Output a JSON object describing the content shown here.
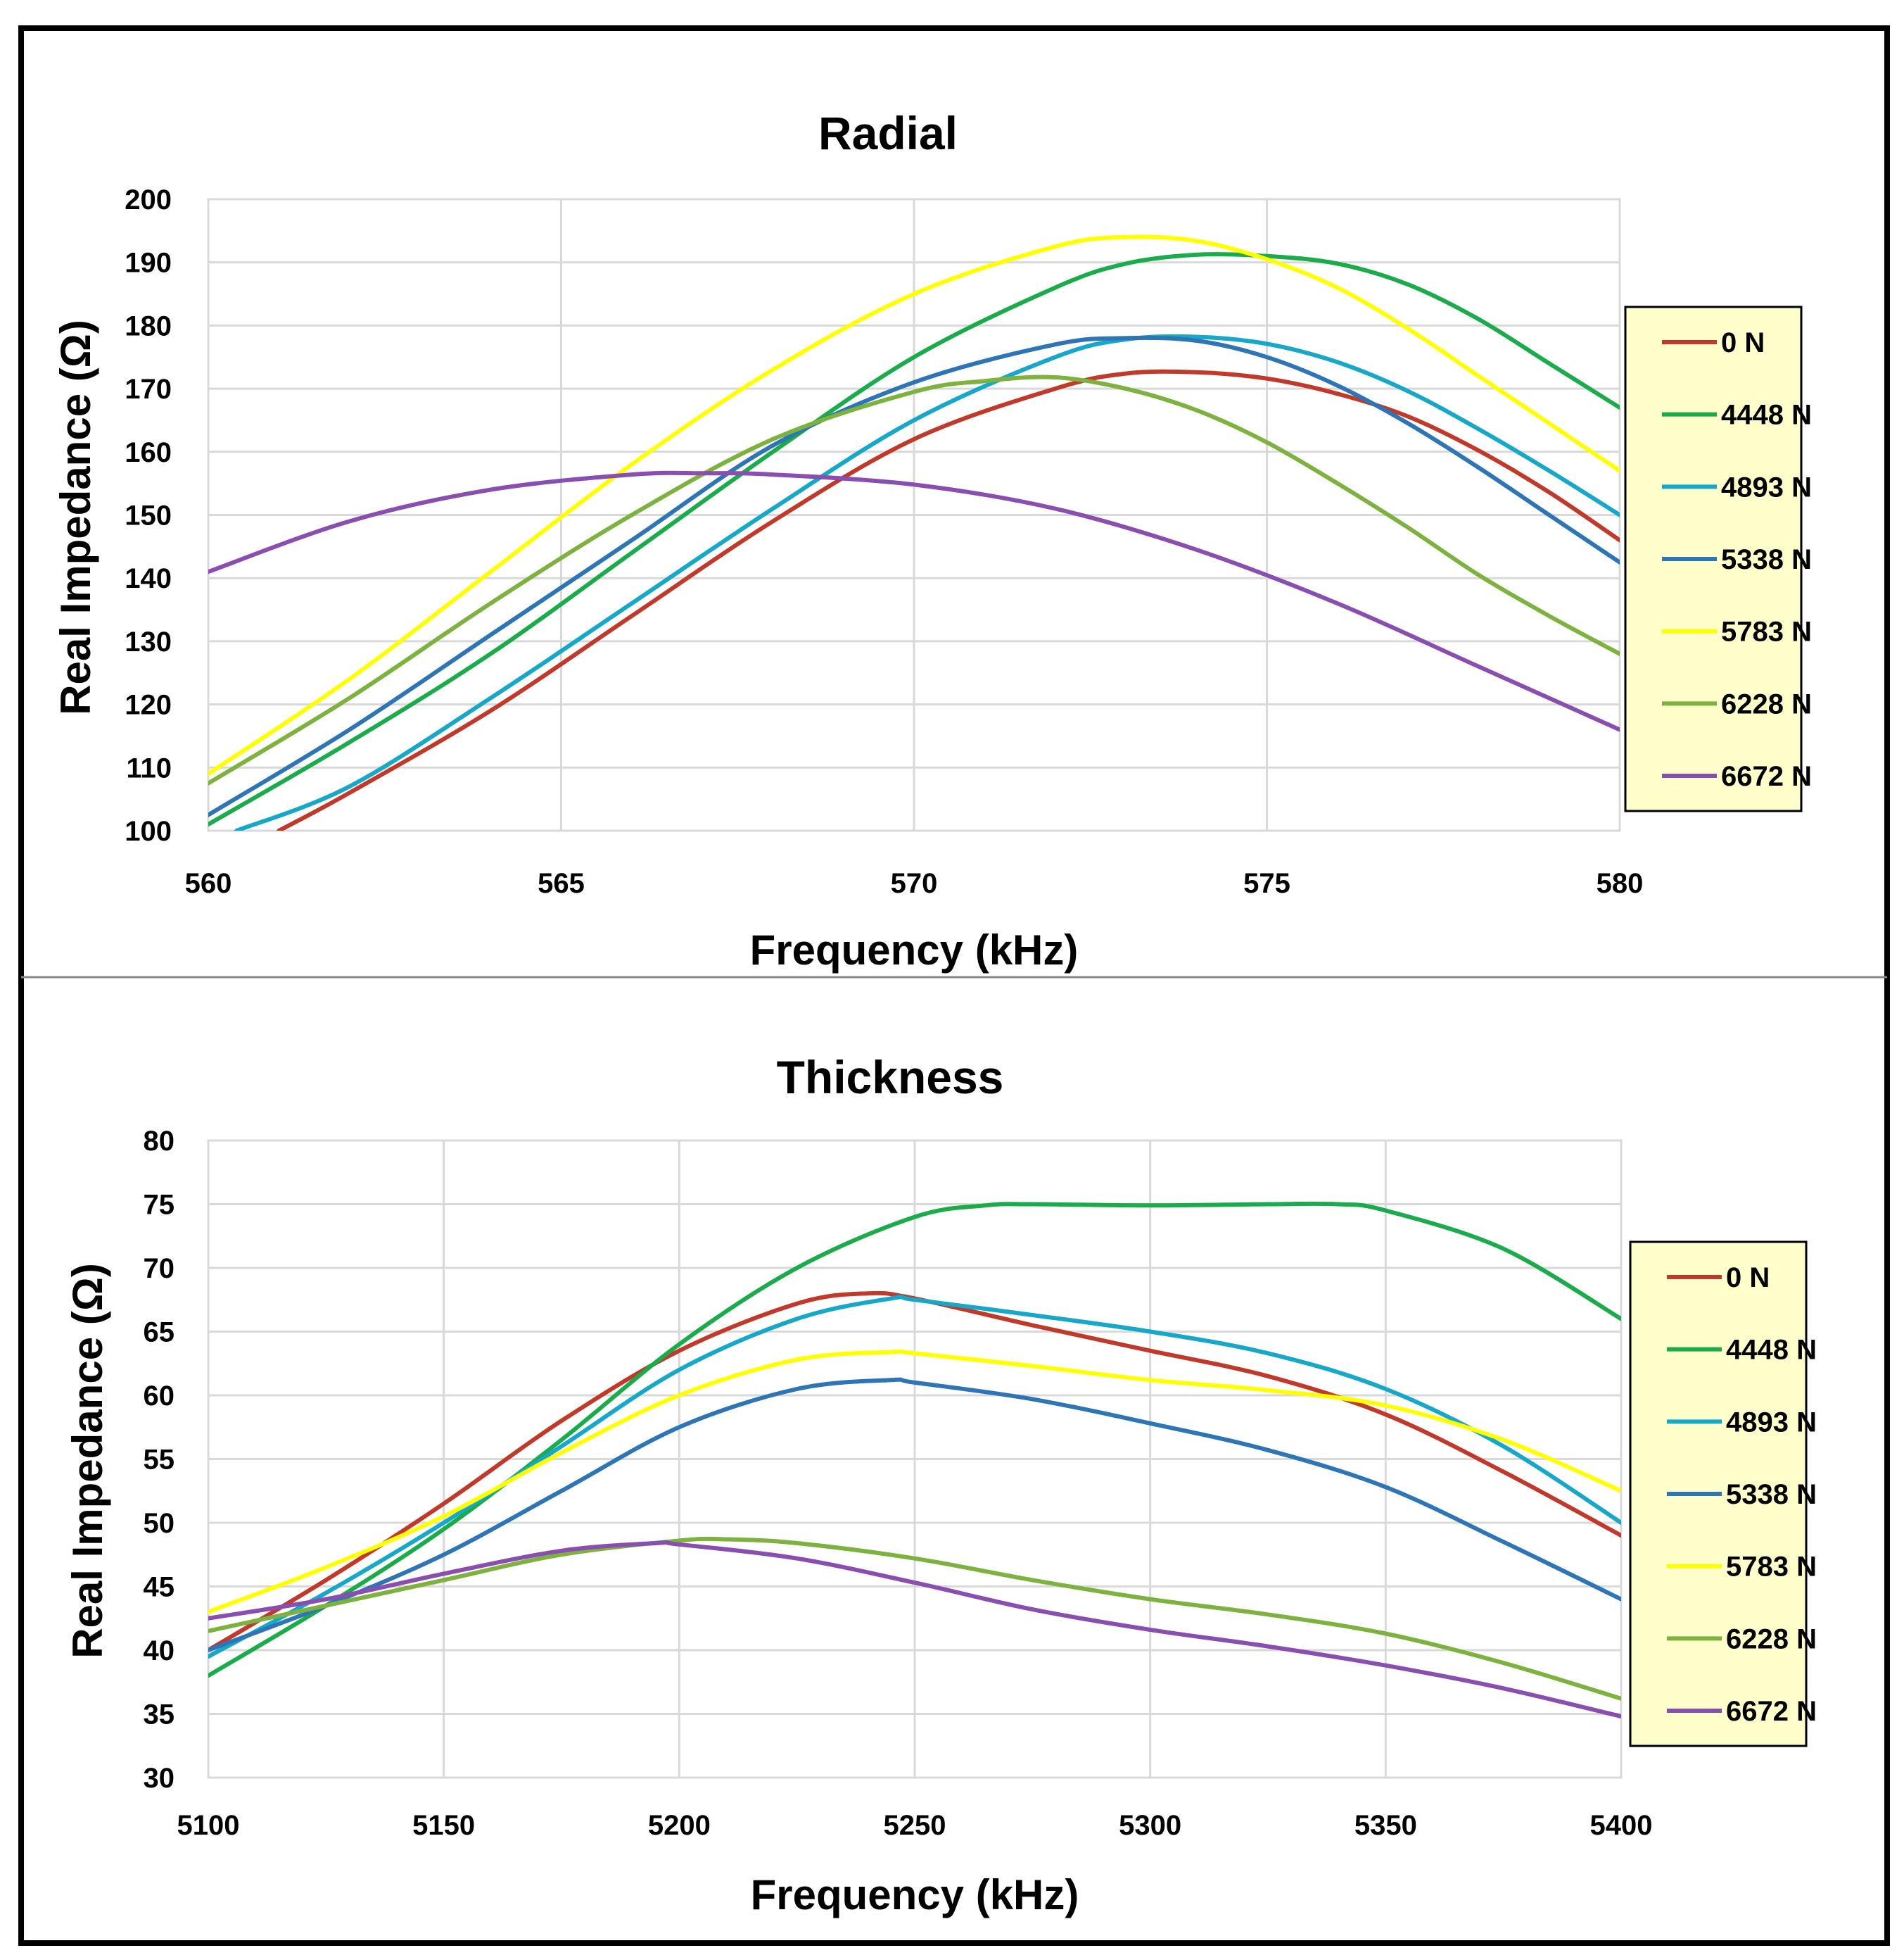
{
  "chart_data": [
    {
      "type": "line",
      "title": "Radial",
      "xlabel": "Frequency (kHz)",
      "ylabel": "Real Impedance (Ω)",
      "xlim": [
        560,
        580
      ],
      "ylim": [
        100,
        200
      ],
      "xticks": [
        560,
        565,
        570,
        575,
        580
      ],
      "yticks": [
        100,
        110,
        120,
        130,
        140,
        150,
        160,
        170,
        180,
        190,
        200
      ],
      "grid": true,
      "legend": "right",
      "series": [
        {
          "name": "0 N",
          "color": "#c0392b",
          "x": [
            561,
            562,
            564,
            566,
            568,
            570,
            572,
            573,
            574,
            575,
            576,
            577,
            578,
            579,
            580
          ],
          "y": [
            100,
            106,
            119,
            134,
            149,
            162,
            170,
            172.4,
            172.6,
            171.6,
            169.2,
            165.6,
            160.2,
            153.6,
            146
          ]
        },
        {
          "name": "4448 N",
          "color": "#1aab4b",
          "x": [
            560,
            562,
            564,
            566,
            568,
            570,
            572,
            573,
            574,
            575,
            576,
            577,
            578,
            579,
            580
          ],
          "y": [
            101,
            114,
            128,
            144,
            160,
            175,
            186,
            189.8,
            191.2,
            191,
            189.8,
            186.5,
            181,
            174,
            167
          ]
        },
        {
          "name": "4893 N",
          "color": "#17a8c9",
          "x": [
            560.4,
            562,
            564,
            566,
            568,
            570,
            572,
            573,
            574,
            575,
            576,
            577,
            578,
            579,
            580
          ],
          "y": [
            100,
            107,
            121,
            136,
            151,
            165,
            175,
            177.8,
            178.2,
            177.1,
            174.2,
            169.6,
            163.6,
            157,
            150
          ]
        },
        {
          "name": "5338 N",
          "color": "#2e75b6",
          "x": [
            560,
            562,
            564,
            566,
            568,
            570,
            572,
            573,
            574,
            575,
            576,
            577,
            578,
            579,
            580
          ],
          "y": [
            102.5,
            116,
            131,
            146,
            161,
            171,
            177,
            178,
            177.6,
            175,
            170.5,
            164.5,
            157.5,
            150,
            142.5
          ]
        },
        {
          "name": "5783 N",
          "color": "#ffff00",
          "x": [
            560,
            562,
            564,
            566,
            568,
            570,
            572,
            573,
            574,
            575,
            576,
            577,
            578,
            579,
            580
          ],
          "y": [
            109,
            124,
            141,
            158,
            173,
            185,
            192.5,
            194,
            193.4,
            190.5,
            186,
            179.5,
            172,
            164.5,
            157
          ]
        },
        {
          "name": "6228 N",
          "color": "#7db23f",
          "x": [
            560,
            562,
            564,
            566,
            568,
            570,
            571,
            572,
            573,
            574,
            575,
            576,
            577,
            578,
            579,
            580
          ],
          "y": [
            107.5,
            121,
            136,
            150,
            162,
            169.5,
            171.2,
            171.8,
            170,
            166.6,
            161.5,
            155,
            148,
            140.5,
            134,
            128
          ]
        },
        {
          "name": "6672 N",
          "color": "#8a4eb0",
          "x": [
            560,
            562,
            564,
            566,
            567,
            568,
            570,
            572,
            574,
            576,
            578,
            580
          ],
          "y": [
            141,
            149,
            154,
            156.4,
            156.6,
            156.4,
            154.8,
            151,
            144.5,
            136,
            126,
            116
          ]
        }
      ]
    },
    {
      "type": "line",
      "title": "Thickness",
      "xlabel": "Frequency (kHz)",
      "ylabel": "Real Impedance (Ω)",
      "xlim": [
        5100,
        5400
      ],
      "ylim": [
        30,
        80
      ],
      "xticks": [
        5100,
        5150,
        5200,
        5250,
        5300,
        5350,
        5400
      ],
      "yticks": [
        30,
        35,
        40,
        45,
        50,
        55,
        60,
        65,
        70,
        75,
        80
      ],
      "grid": true,
      "legend": "right",
      "series": [
        {
          "name": "0 N",
          "color": "#c0392b",
          "x": [
            5100,
            5125,
            5150,
            5175,
            5200,
            5225,
            5240,
            5250,
            5275,
            5300,
            5325,
            5350,
            5375,
            5400
          ],
          "y": [
            40,
            45.5,
            51.5,
            58,
            63.5,
            67.2,
            68,
            67.6,
            65.5,
            63.5,
            61.5,
            58.5,
            54,
            49
          ]
        },
        {
          "name": "4448 N",
          "color": "#1aab4b",
          "x": [
            5100,
            5125,
            5150,
            5175,
            5200,
            5225,
            5250,
            5265,
            5275,
            5300,
            5325,
            5340,
            5350,
            5375,
            5400
          ],
          "y": [
            38,
            43.5,
            49.5,
            56.5,
            64,
            70,
            74,
            74.9,
            75,
            74.9,
            75,
            75,
            74.5,
            71.5,
            66
          ]
        },
        {
          "name": "4893 N",
          "color": "#17a8c9",
          "x": [
            5100,
            5125,
            5150,
            5175,
            5200,
            5225,
            5245,
            5250,
            5275,
            5300,
            5325,
            5350,
            5375,
            5400
          ],
          "y": [
            39.5,
            44.5,
            50,
            56,
            62,
            66,
            67.6,
            67.5,
            66.3,
            65,
            63.3,
            60.5,
            56,
            50
          ]
        },
        {
          "name": "5338 N",
          "color": "#2e75b6",
          "x": [
            5100,
            5125,
            5150,
            5175,
            5200,
            5225,
            5245,
            5250,
            5275,
            5300,
            5325,
            5350,
            5375,
            5400
          ],
          "y": [
            40,
            43.5,
            47.5,
            52.5,
            57.5,
            60.5,
            61.2,
            61,
            59.7,
            57.8,
            55.7,
            52.8,
            48.5,
            44
          ]
        },
        {
          "name": "5783 N",
          "color": "#ffff00",
          "x": [
            5100,
            5125,
            5150,
            5175,
            5200,
            5225,
            5245,
            5250,
            5275,
            5300,
            5325,
            5350,
            5375,
            5400
          ],
          "y": [
            43,
            46.5,
            50.5,
            55.5,
            60,
            62.8,
            63.4,
            63.3,
            62.3,
            61.2,
            60.4,
            59.2,
            56.5,
            52.5
          ]
        },
        {
          "name": "6228 N",
          "color": "#7db23f",
          "x": [
            5100,
            5125,
            5150,
            5175,
            5200,
            5210,
            5225,
            5250,
            5275,
            5300,
            5325,
            5350,
            5375,
            5400
          ],
          "y": [
            41.5,
            43.5,
            45.5,
            47.5,
            48.6,
            48.7,
            48.4,
            47.2,
            45.5,
            44,
            42.8,
            41.3,
            39,
            36.2
          ]
        },
        {
          "name": "6672 N",
          "color": "#8a4eb0",
          "x": [
            5100,
            5125,
            5150,
            5175,
            5195,
            5200,
            5225,
            5250,
            5275,
            5300,
            5325,
            5350,
            5375,
            5400
          ],
          "y": [
            42.5,
            44,
            46,
            47.8,
            48.4,
            48.3,
            47.2,
            45.3,
            43.2,
            41.6,
            40.3,
            38.8,
            37,
            34.8
          ]
        }
      ]
    }
  ]
}
